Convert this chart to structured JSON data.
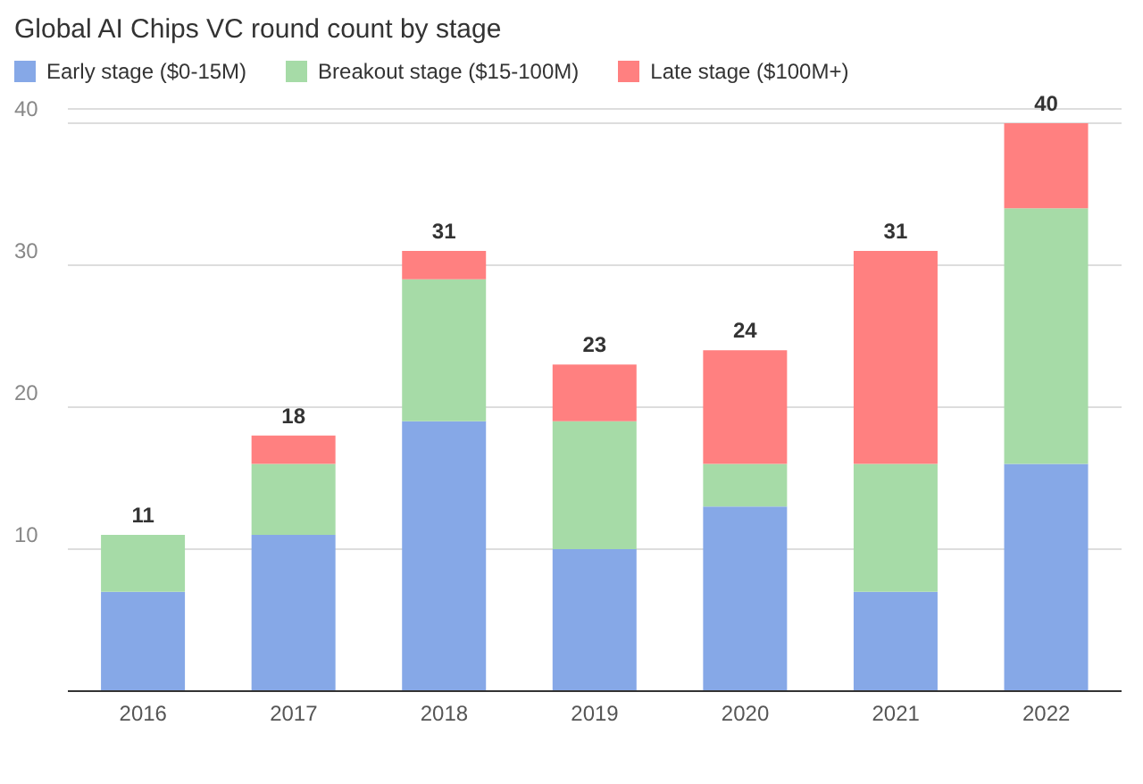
{
  "chart_data": {
    "type": "bar",
    "title": "Global AI Chips VC round count by stage",
    "categories": [
      "2016",
      "2017",
      "2018",
      "2019",
      "2020",
      "2021",
      "2022"
    ],
    "stacked": true,
    "series": [
      {
        "name": "Early stage ($0-15M)",
        "color": "#86a8e7",
        "values": [
          7,
          11,
          19,
          10,
          13,
          7,
          16
        ]
      },
      {
        "name": "Breakout stage ($15-100M)",
        "color": "#a6dba7",
        "values": [
          4,
          5,
          10,
          9,
          3,
          9,
          18
        ]
      },
      {
        "name": "Late stage ($100M+)",
        "color": "#ff8080",
        "values": [
          0,
          2,
          2,
          4,
          8,
          15,
          6
        ]
      }
    ],
    "totals": [
      "11",
      "18",
      "31",
      "23",
      "24",
      "31",
      "40"
    ],
    "ylim": [
      0,
      41
    ],
    "yticks": [
      {
        "value": 0,
        "label": null
      },
      10,
      20,
      30,
      40
    ],
    "grid": "y",
    "legend": "top left"
  }
}
